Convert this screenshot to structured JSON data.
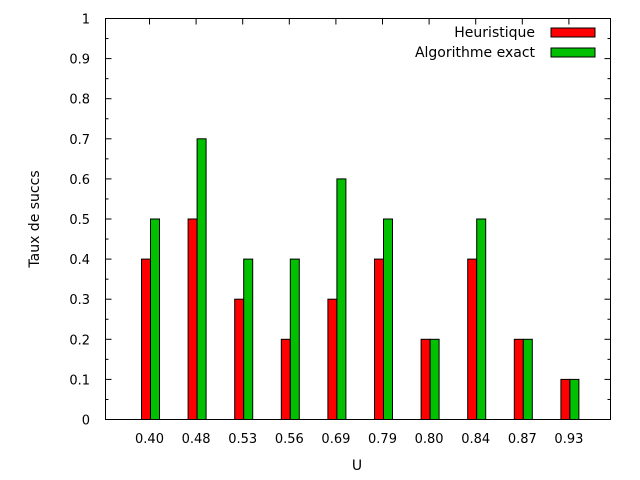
{
  "chart_data": {
    "type": "bar",
    "title": "",
    "xlabel": "U",
    "ylabel": "Taux de succs",
    "categories": [
      "0.40",
      "0.48",
      "0.53",
      "0.56",
      "0.69",
      "0.79",
      "0.80",
      "0.84",
      "0.87",
      "0.93"
    ],
    "ylim": [
      0,
      1
    ],
    "yticks": [
      "0",
      "0.1",
      "0.2",
      "0.3",
      "0.4",
      "0.5",
      "0.6",
      "0.7",
      "0.8",
      "0.9",
      "1"
    ],
    "grid": false,
    "legend_position": "top-right",
    "series": [
      {
        "name": "Heuristique",
        "color": "#ff0000",
        "values": [
          0.4,
          0.5,
          0.3,
          0.2,
          0.3,
          0.4,
          0.2,
          0.4,
          0.2,
          0.1
        ]
      },
      {
        "name": "Algorithme exact",
        "color": "#00c000",
        "values": [
          0.5,
          0.7,
          0.4,
          0.4,
          0.6,
          0.5,
          0.2,
          0.5,
          0.2,
          0.1
        ]
      }
    ]
  }
}
